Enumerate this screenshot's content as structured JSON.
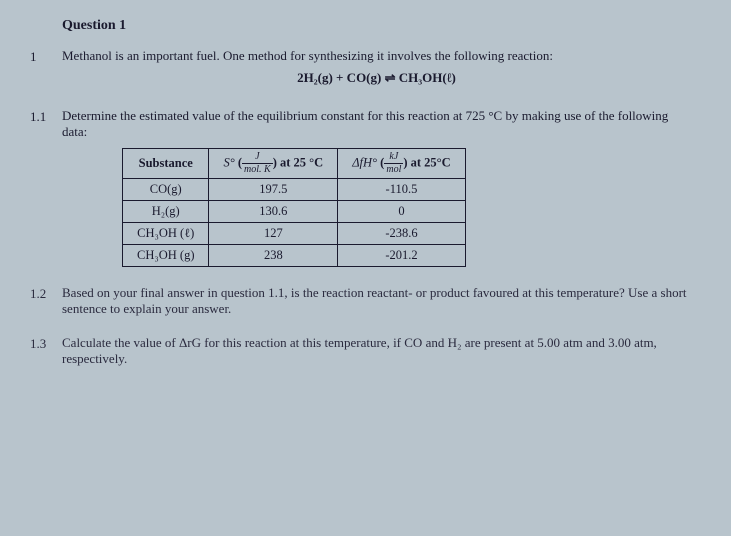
{
  "title": "Question 1",
  "part1": {
    "num": "1",
    "text_a": "Methanol is an important fuel. One method for synthesizing it involves the following reaction:",
    "equation": "2H₂(g) + CO(g) ⇌ CH₃OH(ℓ)"
  },
  "part11": {
    "num": "1.1",
    "text": "Determine the estimated value of the equilibrium constant for this reaction at 725 °C by making use of the following data:"
  },
  "table": {
    "headers": {
      "substance": "Substance",
      "s_prefix": "S°",
      "s_frac_top": "J",
      "s_frac_bot": "mol. K",
      "s_suffix": "at 25 °C",
      "h_prefix": "ΔfH°",
      "h_frac_top": "kJ",
      "h_frac_bot": "mol",
      "h_suffix": "at 25°C"
    },
    "rows": [
      {
        "sub": "CO(g)",
        "s": "197.5",
        "h": "-110.5"
      },
      {
        "sub": "H₂(g)",
        "s": "130.6",
        "h": "0"
      },
      {
        "sub": "CH₃OH (ℓ)",
        "s": "127",
        "h": "-238.6"
      },
      {
        "sub": "CH₃OH (g)",
        "s": "238",
        "h": "-201.2"
      }
    ]
  },
  "part12": {
    "num": "1.2",
    "text": "Based on your final answer in question 1.1, is the reaction reactant- or product favoured at this temperature? Use a short sentence to explain your answer."
  },
  "part13": {
    "num": "1.3",
    "text": "Calculate the value of ΔrG for this reaction at this temperature, if CO and H₂ are present at 5.00 atm and 3.00 atm, respectively."
  }
}
